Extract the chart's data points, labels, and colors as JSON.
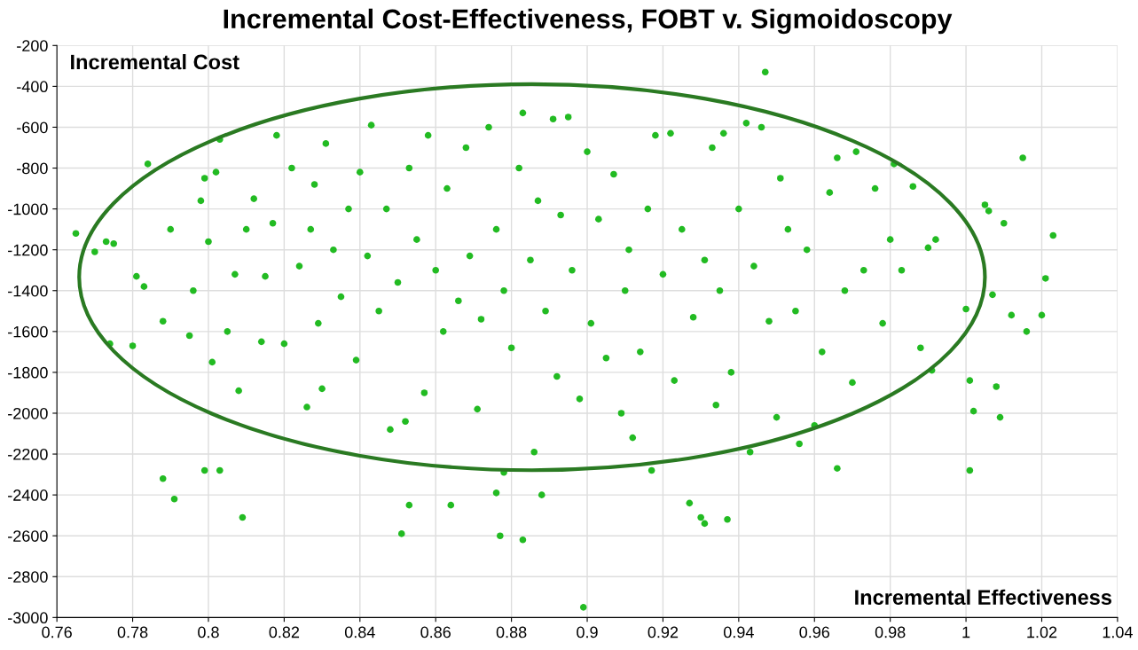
{
  "chart_data": {
    "type": "scatter",
    "title": "Incremental Cost-Effectiveness, FOBT v. Sigmoidoscopy",
    "xlabel": "Incremental Effectiveness",
    "ylabel": "Incremental Cost",
    "xlim": [
      0.76,
      1.04
    ],
    "xticks": [
      0.76,
      0.78,
      0.8,
      0.82,
      0.84,
      0.86,
      0.88,
      0.9,
      0.92,
      0.94,
      0.96,
      0.98,
      1,
      1.02,
      1.04
    ],
    "ylim": [
      -3000,
      -200
    ],
    "yticks": [
      -3000,
      -2800,
      -2600,
      -2400,
      -2200,
      -2000,
      -1800,
      -1600,
      -1400,
      -1200,
      -1000,
      -800,
      -600,
      -400,
      -200
    ],
    "grid": true,
    "series": [
      {
        "color": "#22bb22",
        "marker": "circle",
        "x": [
          0.765,
          0.77,
          0.773,
          0.775,
          0.774,
          0.78,
          0.781,
          0.783,
          0.784,
          0.788,
          0.788,
          0.791,
          0.79,
          0.795,
          0.796,
          0.798,
          0.799,
          0.8,
          0.799,
          0.801,
          0.802,
          0.803,
          0.803,
          0.805,
          0.807,
          0.808,
          0.809,
          0.81,
          0.812,
          0.814,
          0.815,
          0.817,
          0.818,
          0.82,
          0.822,
          0.824,
          0.826,
          0.827,
          0.828,
          0.829,
          0.83,
          0.831,
          0.833,
          0.835,
          0.837,
          0.839,
          0.84,
          0.842,
          0.843,
          0.845,
          0.847,
          0.848,
          0.85,
          0.851,
          0.853,
          0.852,
          0.853,
          0.855,
          0.857,
          0.858,
          0.86,
          0.862,
          0.863,
          0.864,
          0.866,
          0.868,
          0.869,
          0.871,
          0.872,
          0.874,
          0.876,
          0.876,
          0.877,
          0.878,
          0.878,
          0.88,
          0.882,
          0.883,
          0.883,
          0.885,
          0.886,
          0.887,
          0.888,
          0.889,
          0.891,
          0.892,
          0.893,
          0.895,
          0.896,
          0.898,
          0.899,
          0.9,
          0.901,
          0.903,
          0.905,
          0.907,
          0.909,
          0.91,
          0.911,
          0.912,
          0.914,
          0.916,
          0.917,
          0.918,
          0.92,
          0.922,
          0.923,
          0.925,
          0.927,
          0.928,
          0.93,
          0.931,
          0.931,
          0.933,
          0.934,
          0.935,
          0.936,
          0.937,
          0.938,
          0.94,
          0.942,
          0.943,
          0.944,
          0.946,
          0.947,
          0.948,
          0.95,
          0.951,
          0.953,
          0.955,
          0.956,
          0.958,
          0.96,
          0.962,
          0.964,
          0.966,
          0.966,
          0.968,
          0.97,
          0.971,
          0.973,
          0.976,
          0.978,
          0.98,
          0.981,
          0.983,
          0.986,
          0.988,
          0.99,
          0.991,
          0.992,
          1.0,
          1.001,
          1.001,
          1.002,
          1.005,
          1.006,
          1.007,
          1.008,
          1.009,
          1.01,
          1.012,
          1.015,
          1.016,
          1.02,
          1.021,
          1.023
        ],
        "values": [
          -1120,
          -1210,
          -1160,
          -1170,
          -1660,
          -1670,
          -1330,
          -1380,
          -780,
          -1550,
          -2320,
          -2420,
          -1100,
          -1620,
          -1400,
          -960,
          -850,
          -1160,
          -2280,
          -1750,
          -820,
          -2280,
          -660,
          -1600,
          -1320,
          -1890,
          -2510,
          -1100,
          -950,
          -1650,
          -1330,
          -1070,
          -640,
          -1660,
          -800,
          -1280,
          -1970,
          -1100,
          -880,
          -1560,
          -1880,
          -680,
          -1200,
          -1430,
          -1000,
          -1740,
          -820,
          -1230,
          -590,
          -1500,
          -1000,
          -2080,
          -1360,
          -2590,
          -2450,
          -2040,
          -800,
          -1150,
          -1900,
          -640,
          -1300,
          -1600,
          -900,
          -2450,
          -1450,
          -700,
          -1230,
          -1980,
          -1540,
          -600,
          -1100,
          -2390,
          -2600,
          -1400,
          -2290,
          -1680,
          -800,
          -2620,
          -530,
          -1250,
          -2190,
          -960,
          -2400,
          -1500,
          -560,
          -1820,
          -1030,
          -550,
          -1300,
          -1930,
          -2950,
          -720,
          -1560,
          -1050,
          -1730,
          -830,
          -2000,
          -1400,
          -1200,
          -2120,
          -1700,
          -1000,
          -2280,
          -640,
          -1320,
          -630,
          -1840,
          -1100,
          -2440,
          -1530,
          -2510,
          -2540,
          -1250,
          -700,
          -1960,
          -1400,
          -630,
          -2520,
          -1800,
          -1000,
          -580,
          -2190,
          -1280,
          -600,
          -330,
          -1550,
          -2020,
          -850,
          -1100,
          -1500,
          -2150,
          -1200,
          -2060,
          -1700,
          -920,
          -2270,
          -750,
          -1400,
          -1850,
          -720,
          -1300,
          -900,
          -1560,
          -1150,
          -780,
          -1300,
          -890,
          -1680,
          -1190,
          -1790,
          -1150,
          -1490,
          -1840,
          -2280,
          -1990,
          -980,
          -1010,
          -1420,
          -1870,
          -2020,
          -1070,
          -1520,
          -750,
          -1600,
          -1520,
          -1340,
          -1130
        ]
      }
    ]
  }
}
